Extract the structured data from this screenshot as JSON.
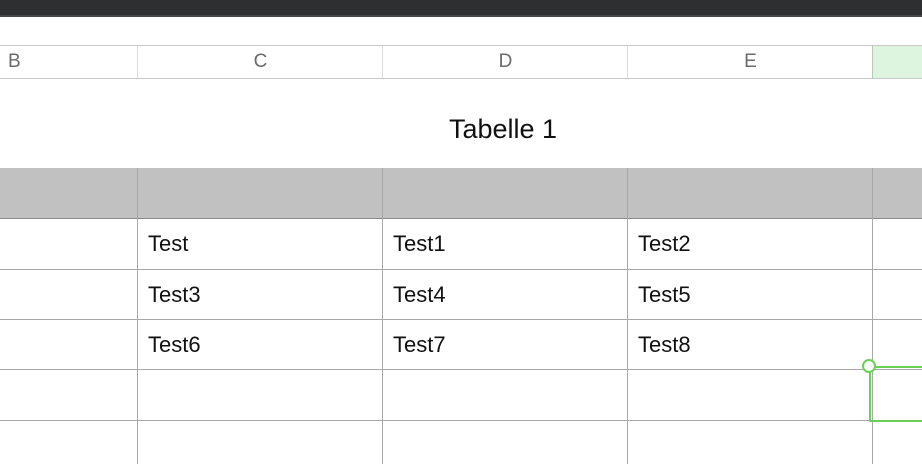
{
  "columns": [
    "B",
    "C",
    "D",
    "E",
    ""
  ],
  "table": {
    "title": "Tabelle 1",
    "rows": [
      [
        "Test",
        "Test1",
        "Test2"
      ],
      [
        "Test3",
        "Test4",
        "Test5"
      ],
      [
        "Test6",
        "Test7",
        "Test8"
      ]
    ]
  },
  "colors": {
    "selection": "#6ccf5a",
    "header_row": "#c0c1c0",
    "selected_column_header": "#ddf4de"
  }
}
